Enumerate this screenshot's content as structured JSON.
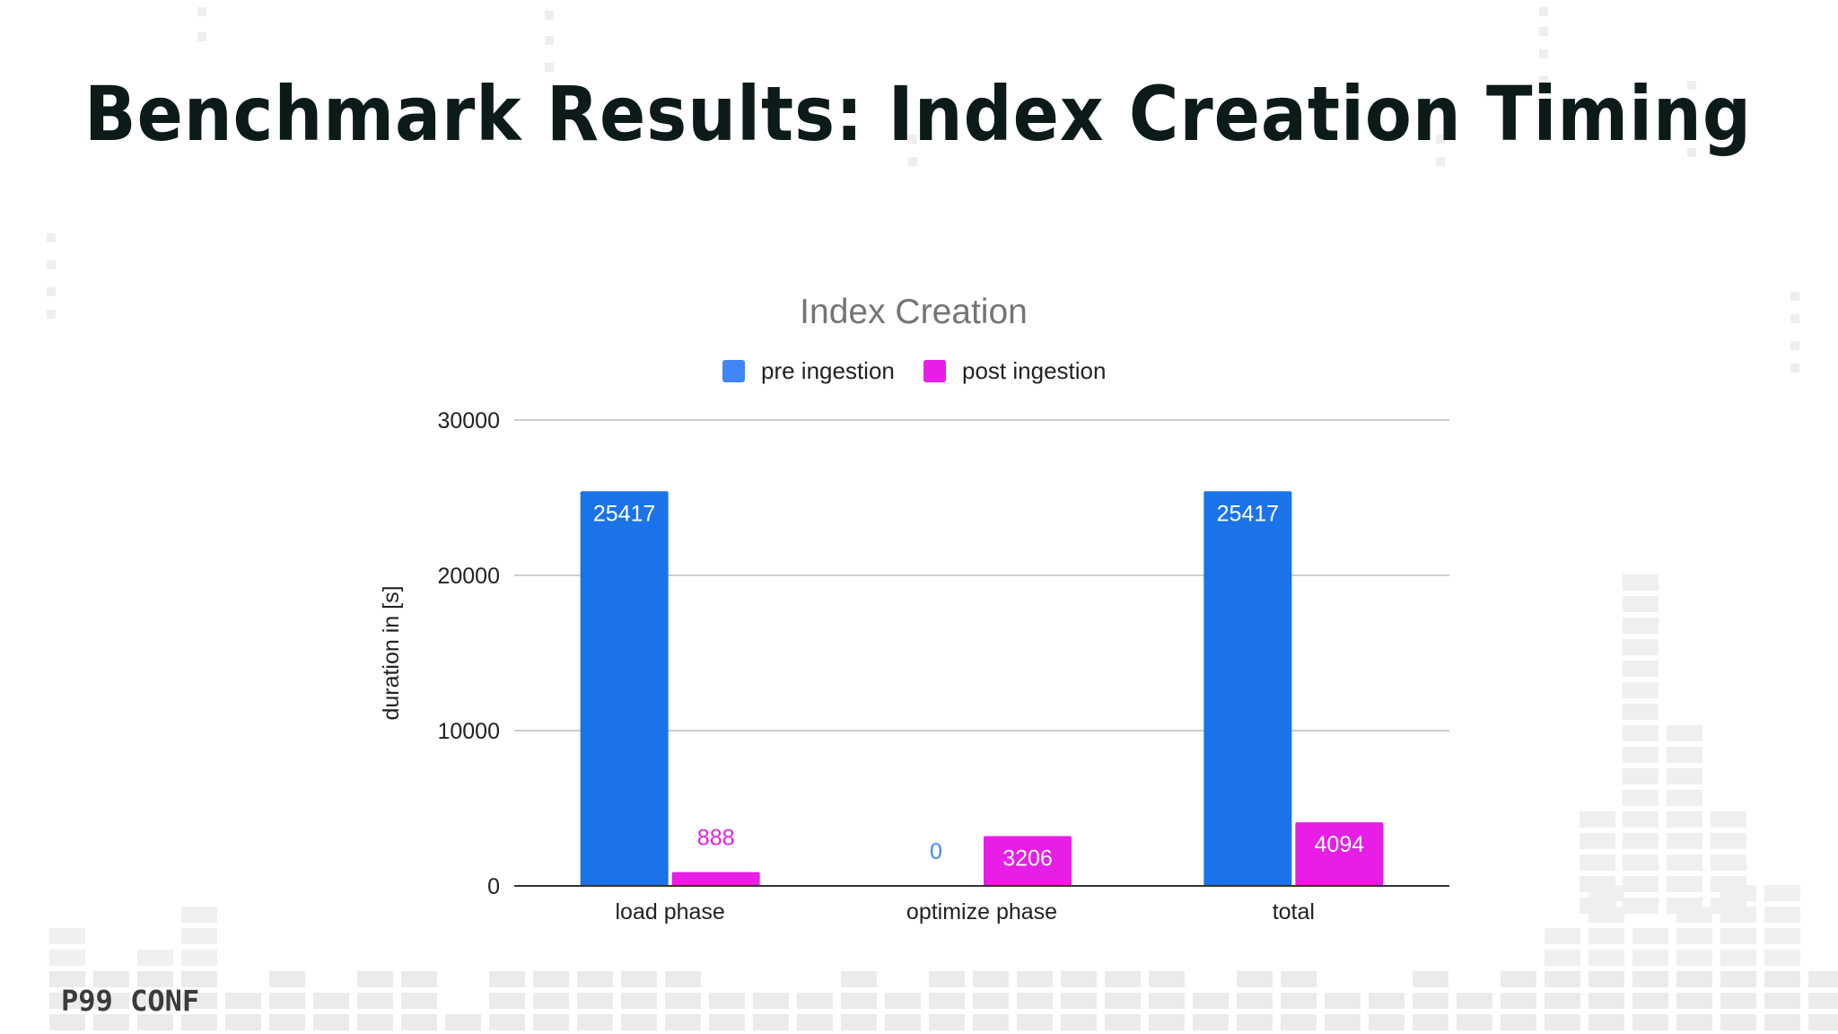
{
  "slide": {
    "title": "Benchmark Results: Index Creation Timing",
    "logo": "P99 CONF"
  },
  "colors": {
    "pre": "#1a73e8",
    "post": "#e61ee6",
    "pre_legend": "#4285f4",
    "grid": "#cccccc",
    "axis_text": "#222222",
    "chart_title": "#757575"
  },
  "chart_data": {
    "type": "bar",
    "title": "Index Creation",
    "ylabel": "duration in [s]",
    "xlabel": "",
    "categories": [
      "load phase",
      "optimize phase",
      "total"
    ],
    "series": [
      {
        "name": "pre ingestion",
        "values": [
          25417,
          0,
          25417
        ]
      },
      {
        "name": "post ingestion",
        "values": [
          888,
          3206,
          4094
        ]
      }
    ],
    "ylim": [
      0,
      30000
    ],
    "yticks": [
      0,
      10000,
      20000,
      30000
    ],
    "grid": true,
    "legend": "top-center",
    "data_labels": true
  }
}
